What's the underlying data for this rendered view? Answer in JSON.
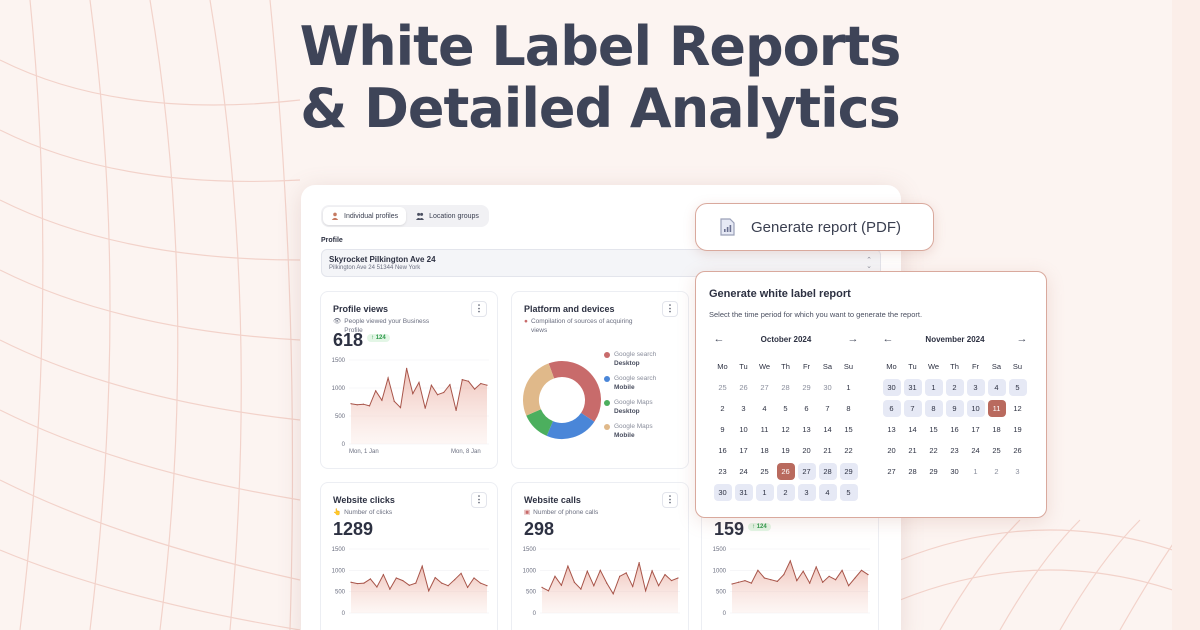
{
  "headline": {
    "line1": "White Label Reports",
    "line2": "& Detailed Analytics"
  },
  "tabs": [
    {
      "label": "Individual profiles",
      "icon": "user-icon",
      "active": true
    },
    {
      "label": "Location groups",
      "icon": "users-icon",
      "active": false
    }
  ],
  "profile": {
    "label": "Profile",
    "name": "Skyrocket Pilkington Ave 24",
    "address": "Pilkington Ave 24 51344 New York"
  },
  "cards": {
    "profile_views": {
      "title": "Profile views",
      "subtitle": "People viewed your Business Profile",
      "value": "618",
      "badge": "124",
      "xlabel_start": "Mon, 1 Jan",
      "xlabel_end": "Mon, 8 Jan"
    },
    "platform": {
      "title": "Platform and devices",
      "subtitle": "Compilation of sources of acquiring views"
    },
    "website_clicks": {
      "title": "Website clicks",
      "subtitle": "Number of clicks",
      "value": "1289"
    },
    "website_calls": {
      "title": "Website calls",
      "subtitle": "Number of phone calls",
      "value": "298"
    },
    "third": {
      "value": "159",
      "badge": "124"
    }
  },
  "legend": [
    {
      "source": "Google search",
      "device": "Desktop",
      "color": "#c86b6b"
    },
    {
      "source": "Google search",
      "device": "Mobile",
      "color": "#4a86d8"
    },
    {
      "source": "Google Maps",
      "device": "Desktop",
      "color": "#4caf5e"
    },
    {
      "source": "Google Maps",
      "device": "Mobile",
      "color": "#e0b98a"
    }
  ],
  "generate_button": {
    "label": "Generate report (PDF)"
  },
  "modal": {
    "title": "Generate white label report",
    "subtitle": "Select the time period for which you want to generate the report.",
    "weekdays": [
      "Mo",
      "Tu",
      "We",
      "Th",
      "Fr",
      "Sa",
      "Su"
    ],
    "months": [
      {
        "name": "October 2024",
        "days": [
          {
            "d": "25",
            "muted": true
          },
          {
            "d": "26",
            "muted": true
          },
          {
            "d": "27",
            "muted": true
          },
          {
            "d": "28",
            "muted": true
          },
          {
            "d": "29",
            "muted": true
          },
          {
            "d": "30",
            "muted": true
          },
          {
            "d": "1"
          },
          {
            "d": "2"
          },
          {
            "d": "3"
          },
          {
            "d": "4"
          },
          {
            "d": "5"
          },
          {
            "d": "6"
          },
          {
            "d": "7"
          },
          {
            "d": "8"
          },
          {
            "d": "9"
          },
          {
            "d": "10"
          },
          {
            "d": "11"
          },
          {
            "d": "12"
          },
          {
            "d": "13"
          },
          {
            "d": "14"
          },
          {
            "d": "15"
          },
          {
            "d": "16"
          },
          {
            "d": "17"
          },
          {
            "d": "18"
          },
          {
            "d": "19"
          },
          {
            "d": "20"
          },
          {
            "d": "21"
          },
          {
            "d": "22"
          },
          {
            "d": "23"
          },
          {
            "d": "24"
          },
          {
            "d": "25"
          },
          {
            "d": "26",
            "active": true
          },
          {
            "d": "27",
            "sel": true
          },
          {
            "d": "28",
            "sel": true
          },
          {
            "d": "29",
            "sel": true
          },
          {
            "d": "30",
            "sel": true
          },
          {
            "d": "31",
            "sel": true
          },
          {
            "d": "1",
            "sel": true
          },
          {
            "d": "2",
            "sel": true
          },
          {
            "d": "3",
            "sel": true
          },
          {
            "d": "4",
            "sel": true
          },
          {
            "d": "5",
            "sel": true
          }
        ]
      },
      {
        "name": "November 2024",
        "days": [
          {
            "d": "30",
            "sel": true
          },
          {
            "d": "31",
            "sel": true
          },
          {
            "d": "1",
            "sel": true
          },
          {
            "d": "2",
            "sel": true
          },
          {
            "d": "3",
            "sel": true
          },
          {
            "d": "4",
            "sel": true
          },
          {
            "d": "5",
            "sel": true
          },
          {
            "d": "6",
            "sel": true
          },
          {
            "d": "7",
            "sel": true
          },
          {
            "d": "8",
            "sel": true
          },
          {
            "d": "9",
            "sel": true
          },
          {
            "d": "10",
            "sel": true
          },
          {
            "d": "11",
            "active": true
          },
          {
            "d": "12"
          },
          {
            "d": "13"
          },
          {
            "d": "14"
          },
          {
            "d": "15"
          },
          {
            "d": "16"
          },
          {
            "d": "17"
          },
          {
            "d": "18"
          },
          {
            "d": "19"
          },
          {
            "d": "20"
          },
          {
            "d": "21"
          },
          {
            "d": "22"
          },
          {
            "d": "23"
          },
          {
            "d": "24"
          },
          {
            "d": "25"
          },
          {
            "d": "26"
          },
          {
            "d": "27"
          },
          {
            "d": "28"
          },
          {
            "d": "29"
          },
          {
            "d": "30"
          },
          {
            "d": "1",
            "muted": true
          },
          {
            "d": "2",
            "muted": true
          },
          {
            "d": "3",
            "muted": true
          }
        ]
      }
    ]
  },
  "chart_data": [
    {
      "type": "area",
      "title": "Profile views",
      "xlabel_start": "Mon, 1 Jan",
      "xlabel_end": "Mon, 8 Jan",
      "yticks": [
        0,
        500,
        1000,
        1500
      ],
      "ylim": [
        0,
        1500
      ],
      "values": [
        720,
        700,
        710,
        680,
        950,
        780,
        1180,
        760,
        650,
        1350,
        900,
        1100,
        640,
        1050,
        880,
        920,
        1060,
        600,
        1150,
        1120,
        980,
        1080,
        1050
      ]
    },
    {
      "type": "pie",
      "title": "Platform and devices",
      "labels": [
        "Google search Desktop",
        "Google search Mobile",
        "Google Maps Desktop",
        "Google Maps Mobile"
      ],
      "values": [
        40,
        22,
        12,
        26
      ]
    },
    {
      "type": "area",
      "title": "Website clicks",
      "yticks": [
        0,
        500,
        1000,
        1500
      ],
      "ylim": [
        0,
        1500
      ],
      "values": [
        720,
        690,
        700,
        800,
        610,
        900,
        560,
        820,
        760,
        650,
        700,
        1100,
        520,
        830,
        700,
        640,
        780,
        930,
        600,
        820,
        700,
        640
      ]
    },
    {
      "type": "area",
      "title": "Website calls",
      "yticks": [
        0,
        500,
        1000,
        1500
      ],
      "ylim": [
        0,
        1500
      ],
      "values": [
        600,
        520,
        860,
        650,
        1100,
        720,
        560,
        980,
        640,
        1000,
        700,
        450,
        860,
        940,
        620,
        1180,
        520,
        990,
        640,
        900,
        760,
        820
      ]
    },
    {
      "type": "area",
      "title": "",
      "yticks": [
        0,
        500,
        1000,
        1500
      ],
      "ylim": [
        0,
        1500
      ],
      "values": [
        680,
        720,
        760,
        700,
        1000,
        820,
        780,
        740,
        900,
        1220,
        760,
        980,
        700,
        1080,
        720,
        860,
        780,
        1000,
        640,
        820,
        1000,
        900
      ]
    }
  ]
}
